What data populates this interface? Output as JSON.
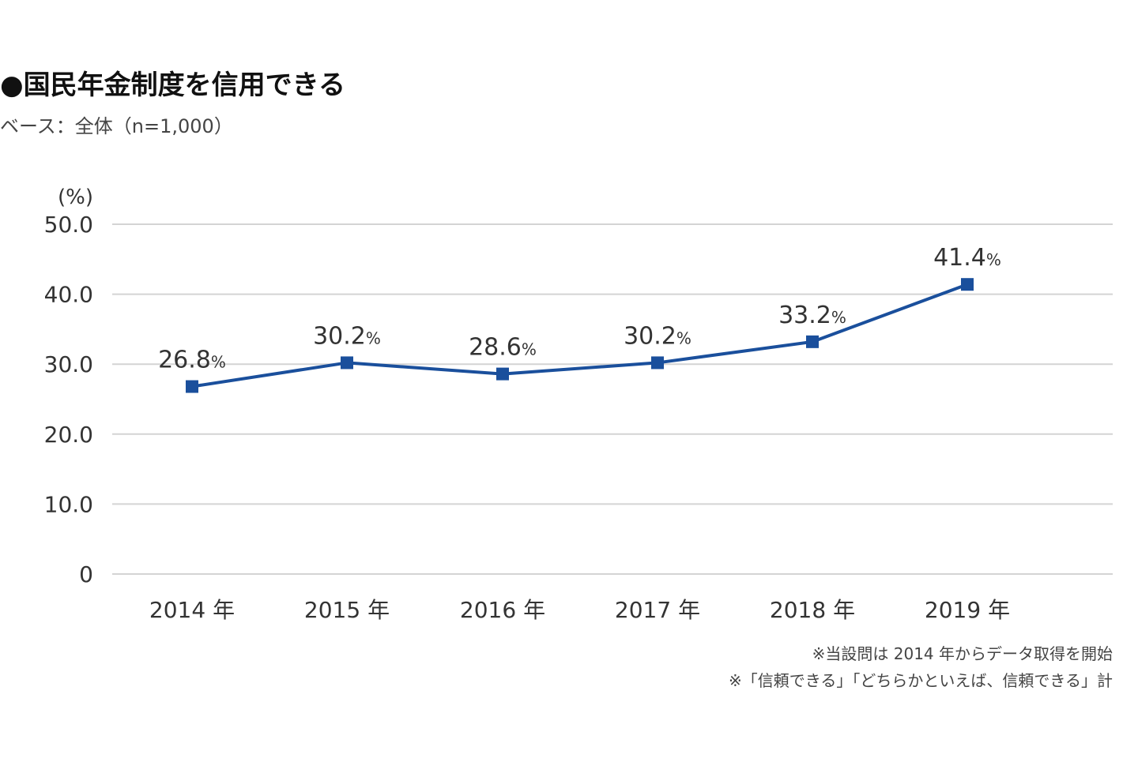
{
  "title": "●国民年金制度を信用できる",
  "subtitle": "ベース：全体（n=1,000）",
  "notes": [
    "※当設問は 2014 年からデータ取得を開始",
    "※「信頼できる」「どちらかといえば、信頼できる」計"
  ],
  "colors": {
    "line": "#1a4f9c",
    "grid": "#d4d4d4",
    "text": "#333333"
  },
  "chart_data": {
    "type": "line",
    "categories": [
      "2014 年",
      "2015 年",
      "2016 年",
      "2017 年",
      "2018 年",
      "2019 年"
    ],
    "series": [
      {
        "values": [
          26.8,
          30.2,
          28.6,
          30.2,
          33.2,
          41.4
        ]
      }
    ],
    "data_labels": [
      "26.8",
      "30.2",
      "28.6",
      "30.2",
      "33.2",
      "41.4"
    ],
    "label_unit": "%",
    "ylabel": "(%)",
    "ylim": [
      0,
      50
    ],
    "yticks": [
      0,
      10,
      20,
      30,
      40,
      50
    ],
    "ytick_labels": [
      "0",
      "10.0",
      "20.0",
      "30.0",
      "40.0",
      "50.0"
    ],
    "grid": true,
    "marker": "square"
  }
}
